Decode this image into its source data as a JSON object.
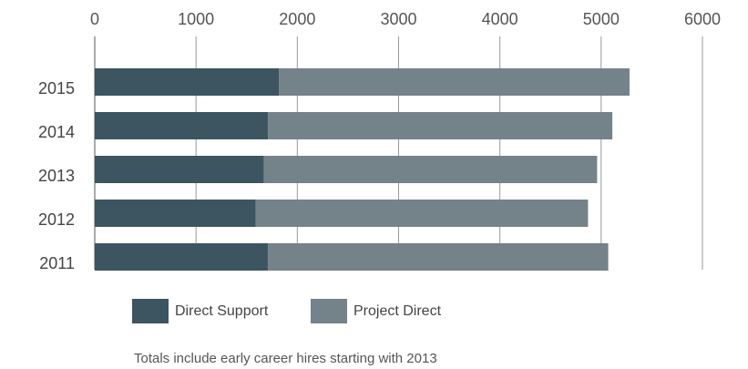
{
  "chart_data": {
    "type": "bar",
    "orientation": "horizontal",
    "stacked": true,
    "categories": [
      "2015",
      "2014",
      "2013",
      "2012",
      "2011"
    ],
    "series": [
      {
        "name": "Direct Support",
        "color": "#3d5560",
        "values": [
          1820,
          1710,
          1670,
          1590,
          1710
        ]
      },
      {
        "name": "Project Direct",
        "color": "#748289",
        "values": [
          3460,
          3400,
          3290,
          3280,
          3360
        ]
      }
    ],
    "xlim": [
      0,
      6000
    ],
    "xticks": [
      0,
      1000,
      2000,
      3000,
      4000,
      5000,
      6000
    ],
    "grid": true,
    "note": "Totals include early career hires starting with 2013"
  }
}
